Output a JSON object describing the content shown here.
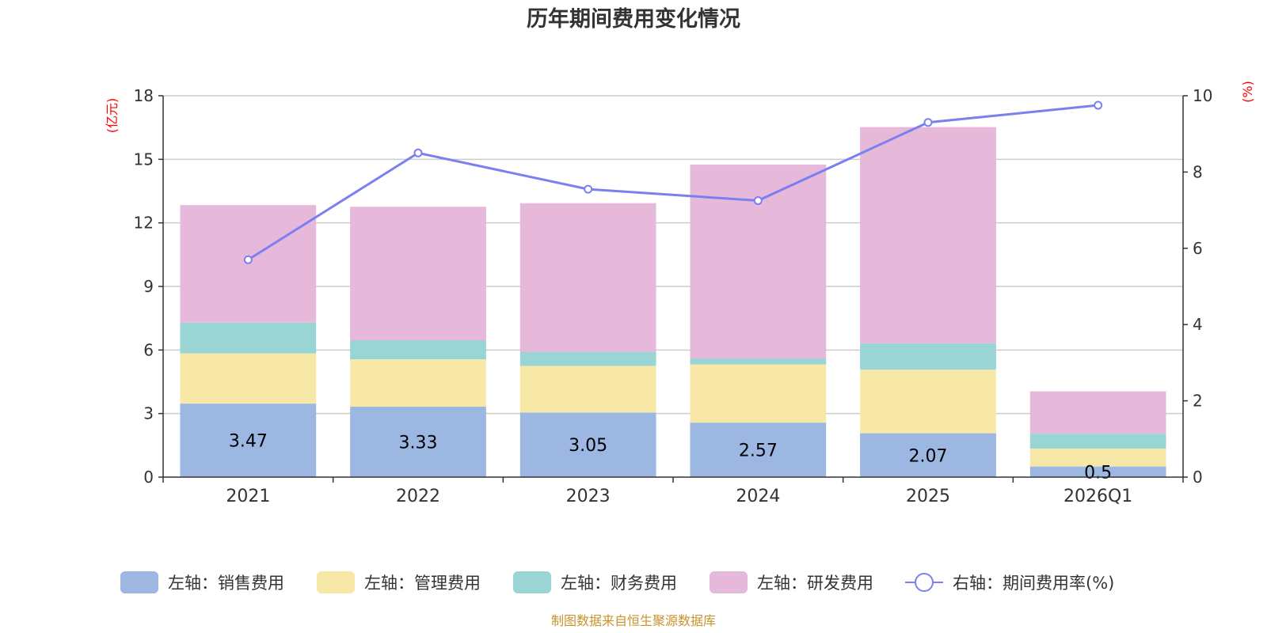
{
  "chart_data": {
    "type": "bar",
    "title": "历年期间费用变化情况",
    "categories": [
      "2021",
      "2022",
      "2023",
      "2024",
      "2025",
      "2026Q1"
    ],
    "left_axis": {
      "unit": "(亿元)",
      "ylim": [
        0,
        18
      ],
      "ticks": [
        "0",
        "3",
        "6",
        "9",
        "12",
        "15",
        "18"
      ]
    },
    "right_axis": {
      "unit": "(%)",
      "ylim": [
        0,
        10
      ],
      "ticks": [
        "0",
        "2",
        "4",
        "6",
        "8",
        "10"
      ]
    },
    "series": [
      {
        "name": "左轴：销售费用",
        "type": "bar",
        "axis": "left",
        "color": "#9bb7e2",
        "values": [
          3.47,
          3.33,
          3.05,
          2.57,
          2.07,
          0.5
        ],
        "labels": [
          "3.47",
          "3.33",
          "3.05",
          "2.57",
          "2.07",
          "0.5"
        ]
      },
      {
        "name": "左轴：管理费用",
        "type": "bar",
        "axis": "left",
        "color": "#f8e8a8",
        "values": [
          2.37,
          2.23,
          2.2,
          2.75,
          3.0,
          0.85
        ]
      },
      {
        "name": "左轴：财务费用",
        "type": "bar",
        "axis": "left",
        "color": "#98d5d4",
        "values": [
          1.45,
          0.9,
          0.65,
          0.28,
          1.25,
          0.7
        ]
      },
      {
        "name": "左轴：研发费用",
        "type": "bar",
        "axis": "left",
        "color": "#e6b8d9",
        "values": [
          5.55,
          6.3,
          7.03,
          9.15,
          10.2,
          2.0
        ]
      },
      {
        "name": "右轴：期间费用率(%)",
        "type": "line",
        "axis": "right",
        "color": "#7b7ff0",
        "values": [
          5.7,
          8.5,
          7.55,
          7.25,
          9.3,
          9.75
        ]
      }
    ],
    "grid": true,
    "legend": "bottom"
  },
  "footer": "制图数据来自恒生聚源数据库"
}
